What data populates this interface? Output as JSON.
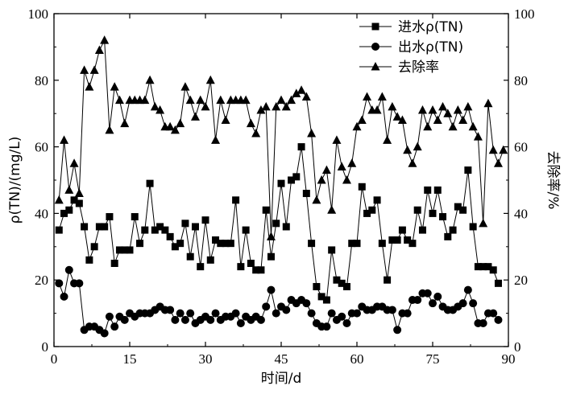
{
  "chart_data": {
    "type": "line",
    "title": "",
    "xlabel": "时间/d",
    "ylabel_left": "ρ(TN)/(mg/L)",
    "ylabel_right": "去除率/%",
    "xlim": [
      0,
      90
    ],
    "ylim_left": [
      0,
      100
    ],
    "ylim_right": [
      0,
      100
    ],
    "xticks": [
      "0",
      "15",
      "30",
      "45",
      "60",
      "75",
      "90"
    ],
    "yticks_left": [
      "0",
      "20",
      "40",
      "60",
      "80",
      "100"
    ],
    "yticks_right": [
      "0",
      "20",
      "40",
      "60",
      "80",
      "100"
    ],
    "grid": false,
    "legend_position": "top-right",
    "x": [
      1,
      2,
      3,
      4,
      5,
      6,
      7,
      8,
      9,
      10,
      11,
      12,
      13,
      14,
      15,
      16,
      17,
      18,
      19,
      20,
      21,
      22,
      23,
      24,
      25,
      26,
      27,
      28,
      29,
      30,
      31,
      32,
      33,
      34,
      35,
      36,
      37,
      38,
      39,
      40,
      41,
      42,
      43,
      44,
      45,
      46,
      47,
      48,
      49,
      50,
      51,
      52,
      53,
      54,
      55,
      56,
      57,
      58,
      59,
      60,
      61,
      62,
      63,
      64,
      65,
      66,
      67,
      68,
      69,
      70,
      71,
      72,
      73,
      74,
      75,
      76,
      77,
      78,
      79,
      80,
      81,
      82,
      83,
      84,
      85,
      86,
      87,
      88,
      89,
      90
    ],
    "series": [
      {
        "name": "进水ρ(TN)",
        "marker": "square",
        "axis": "left",
        "values": [
          35,
          40,
          41,
          44,
          43,
          36,
          26,
          30,
          36,
          36,
          39,
          25,
          29,
          29,
          29,
          39,
          31,
          35,
          49,
          35,
          36,
          35,
          33,
          30,
          31,
          37,
          27,
          36,
          24,
          38,
          26,
          32,
          31,
          31,
          31,
          44,
          24,
          35,
          25,
          23,
          23,
          41,
          27,
          37,
          49,
          36,
          50,
          51,
          60,
          46,
          31,
          18,
          15,
          14,
          29,
          20,
          19,
          18,
          31,
          31,
          48,
          40,
          41,
          44,
          31,
          20,
          32,
          32,
          35,
          32,
          31,
          41,
          35,
          47,
          40,
          47,
          39,
          33,
          35,
          42,
          41,
          53,
          36,
          24,
          24,
          24,
          23,
          19,
          null,
          null
        ],
        "note": ""
      },
      {
        "name": "出水ρ(TN)",
        "marker": "circle",
        "axis": "left",
        "values": [
          19,
          15,
          23,
          19,
          19,
          5,
          6,
          6,
          5,
          4,
          9,
          6,
          9,
          8,
          10,
          9,
          10,
          10,
          10,
          11,
          12,
          11,
          11,
          8,
          10,
          8,
          10,
          7,
          8,
          9,
          8,
          10,
          8,
          9,
          9,
          10,
          7,
          9,
          8,
          9,
          8,
          12,
          17,
          10,
          12,
          11,
          14,
          13,
          14,
          13,
          10,
          7,
          6,
          6,
          10,
          8,
          9,
          7,
          10,
          10,
          12,
          11,
          11,
          12,
          12,
          11,
          11,
          5,
          10,
          10,
          14,
          14,
          16,
          16,
          13,
          15,
          12,
          11,
          11,
          12,
          13,
          17,
          13,
          7,
          7,
          10,
          10,
          8,
          null,
          null
        ],
        "note": ""
      },
      {
        "name": "去除率",
        "marker": "triangle",
        "axis": "right",
        "values": [
          44,
          62,
          47,
          55,
          46,
          83,
          78,
          83,
          89,
          92,
          65,
          78,
          74,
          67,
          74,
          74,
          74,
          74,
          80,
          72,
          71,
          66,
          66,
          65,
          67,
          78,
          74,
          69,
          74,
          72,
          80,
          62,
          74,
          68,
          74,
          74,
          74,
          74,
          67,
          64,
          71,
          72,
          33,
          72,
          74,
          72,
          74,
          76,
          77,
          75,
          64,
          44,
          50,
          53,
          41,
          62,
          54,
          50,
          55,
          66,
          68,
          75,
          71,
          71,
          75,
          62,
          72,
          69,
          68,
          59,
          55,
          60,
          71,
          66,
          71,
          68,
          72,
          70,
          66,
          71,
          68,
          72,
          66,
          63,
          37,
          73,
          59,
          55,
          59,
          null
        ]
      }
    ]
  }
}
